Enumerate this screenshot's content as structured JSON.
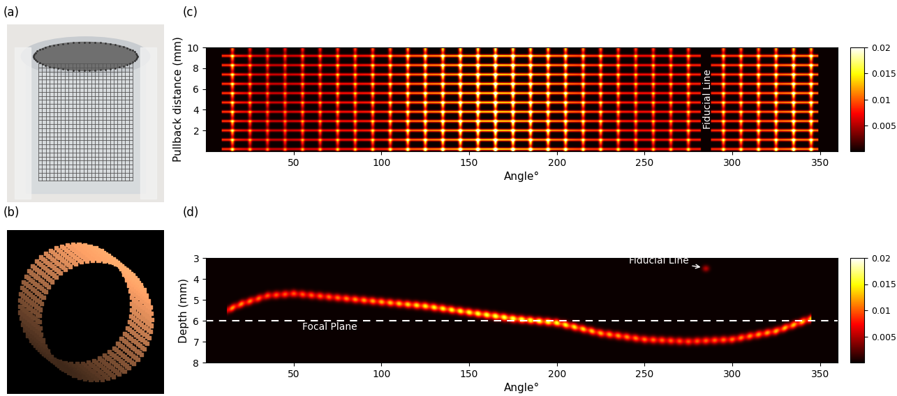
{
  "panel_labels": [
    "(a)",
    "(b)",
    "(c)",
    "(d)"
  ],
  "chart_data": [
    {
      "type": "heatmap",
      "xlabel": "Angle°",
      "ylabel": "Pullback distance (mm)",
      "xlim": [
        0,
        360
      ],
      "ylim": [
        0,
        10
      ],
      "xticks": [
        50,
        100,
        150,
        200,
        250,
        300,
        350
      ],
      "yticks": [
        2,
        4,
        6,
        8,
        10
      ],
      "wire_rows": [
        0.2,
        1.1,
        2.0,
        2.9,
        3.8,
        4.7,
        5.6,
        6.5,
        7.4,
        8.3,
        9.2
      ],
      "wire_columns": [
        15,
        25,
        35,
        45,
        55,
        65,
        75,
        85,
        95,
        105,
        115,
        125,
        135,
        145,
        155,
        165,
        175,
        185,
        195,
        205,
        215,
        225,
        235,
        245,
        255,
        265,
        275,
        295,
        305,
        315,
        325,
        335,
        345
      ],
      "column_intensity": [
        0.012,
        0.009,
        0.008,
        0.008,
        0.009,
        0.009,
        0.01,
        0.01,
        0.011,
        0.012,
        0.014,
        0.015,
        0.016,
        0.017,
        0.018,
        0.019,
        0.018,
        0.017,
        0.016,
        0.015,
        0.013,
        0.012,
        0.011,
        0.01,
        0.01,
        0.01,
        0.011,
        0.012,
        0.012,
        0.013,
        0.014,
        0.016,
        0.015
      ],
      "fiducial_angle": 285,
      "fiducial_label": "Fiducial Line",
      "colorbar_range": [
        0,
        0.02
      ],
      "colorbar_ticks": [
        0.005,
        0.01,
        0.015,
        0.02
      ]
    },
    {
      "type": "heatmap",
      "xlabel": "Angle°",
      "ylabel": "Depth (mm)",
      "xlim": [
        0,
        360
      ],
      "ylim": [
        8,
        3
      ],
      "xticks": [
        50,
        100,
        150,
        200,
        250,
        300,
        350
      ],
      "yticks": [
        3,
        4,
        5,
        6,
        7,
        8
      ],
      "angles": [
        12,
        20,
        35,
        50,
        75,
        100,
        125,
        150,
        175,
        200,
        225,
        250,
        275,
        300,
        325,
        345
      ],
      "depths": [
        5.5,
        5.2,
        4.8,
        4.7,
        4.9,
        5.1,
        5.3,
        5.6,
        5.9,
        6.1,
        6.6,
        6.9,
        7.0,
        6.9,
        6.5,
        5.9
      ],
      "intensity": [
        0.012,
        0.012,
        0.01,
        0.01,
        0.011,
        0.013,
        0.015,
        0.016,
        0.017,
        0.016,
        0.013,
        0.011,
        0.01,
        0.011,
        0.013,
        0.014
      ],
      "fiducial_angle": 285,
      "fiducial_depth": 3.5,
      "fiducial_label": "Fiducial Line",
      "focal_plane_depth": 6,
      "focal_plane_label": "Focal Plane",
      "colorbar_range": [
        0,
        0.02
      ],
      "colorbar_ticks": [
        0.005,
        0.01,
        0.015,
        0.02
      ]
    }
  ]
}
